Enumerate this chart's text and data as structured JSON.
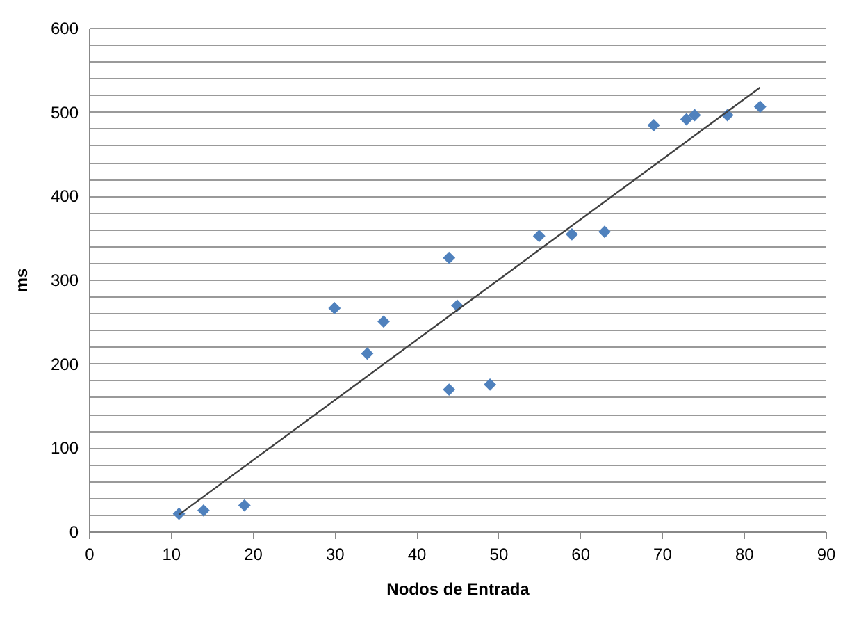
{
  "chart_data": {
    "type": "scatter",
    "xlabel": "Nodos de Entrada",
    "ylabel": "ms",
    "xlim": [
      0,
      90
    ],
    "xticks": [
      0,
      10,
      20,
      30,
      40,
      50,
      60,
      70,
      80,
      90
    ],
    "ylim": [
      0,
      600
    ],
    "yticks": [
      0,
      {
        "value": 20,
        "label": null
      },
      {
        "value": 40,
        "label": null
      },
      {
        "value": 60,
        "label": null
      },
      {
        "value": 80,
        "label": null
      },
      100,
      {
        "value": 120,
        "label": null
      },
      {
        "value": 140,
        "label": null
      },
      {
        "value": 160,
        "label": null
      },
      {
        "value": 180,
        "label": null
      },
      200,
      {
        "value": 220,
        "label": null
      },
      {
        "value": 240,
        "label": null
      },
      {
        "value": 260,
        "label": null
      },
      {
        "value": 280,
        "label": null
      },
      300,
      {
        "value": 320,
        "label": null
      },
      {
        "value": 340,
        "label": null
      },
      {
        "value": 360,
        "label": null
      },
      {
        "value": 380,
        "label": null
      },
      400,
      {
        "value": 420,
        "label": null
      },
      {
        "value": 440,
        "label": null
      },
      {
        "value": 460,
        "label": null
      },
      {
        "value": 480,
        "label": null
      },
      500,
      {
        "value": 520,
        "label": null
      },
      {
        "value": 540,
        "label": null
      },
      {
        "value": 560,
        "label": null
      },
      {
        "value": 580,
        "label": null
      },
      600
    ],
    "grid": "y",
    "series": [
      {
        "marker": "diamond",
        "color": "#4f81bd",
        "x": [
          11,
          14,
          19,
          30,
          34,
          36,
          44,
          44,
          45,
          49,
          55,
          59,
          63,
          69,
          73,
          74,
          78,
          82
        ],
        "values": [
          21,
          25,
          31,
          266,
          212,
          250,
          326,
          169,
          269,
          175,
          352,
          354,
          357,
          484,
          491,
          496,
          496,
          506
        ]
      },
      {
        "type": "line",
        "color": "#404040",
        "x": [
          11,
          82
        ],
        "values": [
          20,
          529
        ]
      }
    ]
  }
}
